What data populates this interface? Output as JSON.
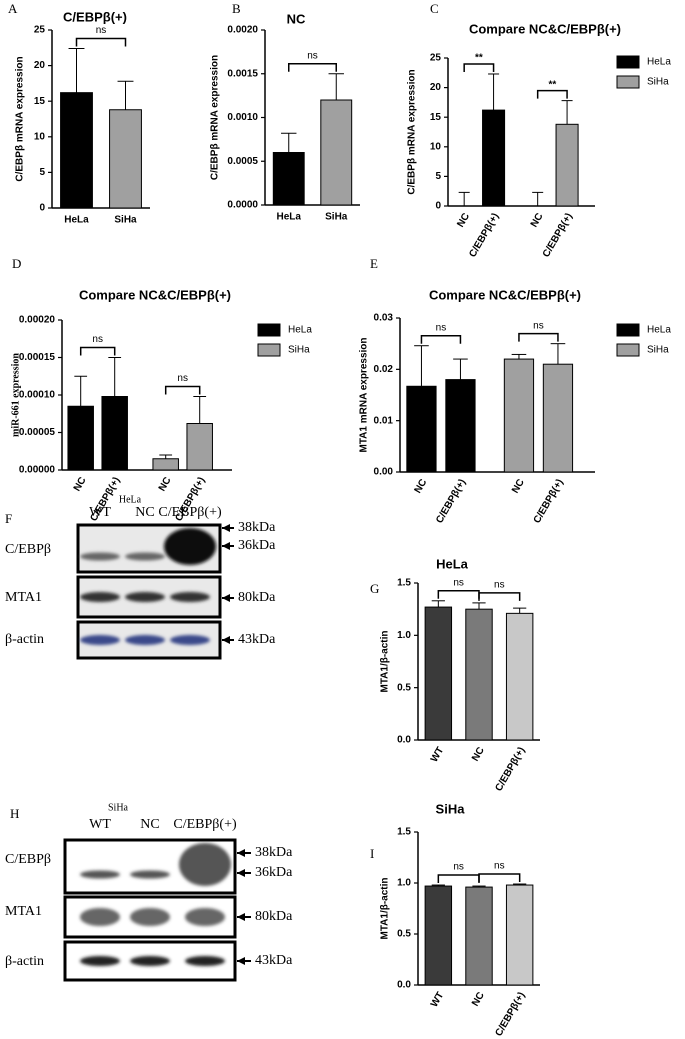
{
  "chart_data": [
    {
      "type": "bar",
      "panel": "A",
      "title": "C/EBPβ(+)",
      "y_label": "C/EBPβ mRNA expression",
      "categories": [
        "HeLa",
        "SiHa"
      ],
      "values": [
        16.2,
        13.8
      ],
      "errors": [
        6.2,
        4.0
      ],
      "colors": [
        "#000000",
        "#a0a0a0"
      ],
      "ylim": [
        0,
        25
      ],
      "yticks": [
        0,
        5,
        10,
        15,
        20,
        25
      ],
      "annotations": [
        "ns"
      ]
    },
    {
      "type": "bar",
      "panel": "B",
      "title": "NC",
      "y_label": "C/EBPβ mRNA expression",
      "categories": [
        "HeLa",
        "SiHa"
      ],
      "values": [
        0.0006,
        0.0012
      ],
      "errors": [
        0.00022,
        0.0003
      ],
      "colors": [
        "#000000",
        "#a0a0a0"
      ],
      "ylim": [
        0,
        0.002
      ],
      "yticks": [
        {
          "value": 0,
          "label": "0.0000"
        },
        {
          "value": 0.0005,
          "label": "0.0005"
        },
        {
          "value": 0.001,
          "label": "0.0010"
        },
        {
          "value": 0.0015,
          "label": "0.0015"
        },
        {
          "value": 0.002,
          "label": "0.0020"
        }
      ],
      "annotations": [
        "ns"
      ]
    },
    {
      "type": "grouped_bar",
      "panel": "C",
      "title": "Compare NC&C/EBPβ(+)",
      "y_label": "C/EBPβ mRNA expression",
      "categories": [
        "NC",
        "C/EBPβ(+)",
        "NC",
        "C/EBPβ(+)"
      ],
      "series": [
        {
          "name": "HeLa",
          "color": "#000000",
          "values": [
            0,
            16.2,
            null,
            null
          ],
          "errors": [
            2.3,
            6.1,
            null,
            null
          ]
        },
        {
          "name": "SiHa",
          "color": "#a0a0a0",
          "values": [
            null,
            null,
            0,
            13.8
          ],
          "errors": [
            null,
            null,
            2.3,
            4.0
          ]
        }
      ],
      "ylim": [
        0,
        25
      ],
      "yticks": [
        0,
        5,
        10,
        15,
        20,
        25
      ],
      "annotations": [
        "**",
        "**"
      ]
    },
    {
      "type": "grouped_bar",
      "panel": "D",
      "title": "Compare NC&C/EBPβ(+)",
      "y_label": "miR-661 expression",
      "categories": [
        "NC",
        "C/EBPβ(+)",
        "NC",
        "C/EBPβ(+)"
      ],
      "series": [
        {
          "name": "HeLa",
          "color": "#000000",
          "values": [
            8.5e-05,
            9.8e-05,
            null,
            null
          ],
          "errors": [
            4e-05,
            5.2e-05,
            null,
            null
          ]
        },
        {
          "name": "SiHa",
          "color": "#a0a0a0",
          "values": [
            null,
            null,
            1.5e-05,
            6.2e-05
          ],
          "errors": [
            null,
            null,
            5e-06,
            3.6e-05
          ]
        }
      ],
      "ylim": [
        0,
        0.0002
      ],
      "yticks": [
        {
          "value": 0,
          "label": "0.00000"
        },
        {
          "value": 5e-05,
          "label": "0.00005"
        },
        {
          "value": 0.0001,
          "label": "0.00010"
        },
        {
          "value": 0.00015,
          "label": "0.00015"
        },
        {
          "value": 0.0002,
          "label": "0.00020"
        }
      ],
      "annotations": [
        "ns",
        "ns"
      ]
    },
    {
      "type": "grouped_bar",
      "panel": "E",
      "title": "Compare NC&C/EBPβ(+)",
      "y_label": "MTA1 mRNA expression",
      "categories": [
        "NC",
        "C/EBPβ(+)",
        "NC",
        "C/EBPβ(+)"
      ],
      "series": [
        {
          "name": "HeLa",
          "color": "#000000",
          "values": [
            0.0167,
            0.018,
            null,
            null
          ],
          "errors": [
            0.0079,
            0.004,
            null,
            null
          ]
        },
        {
          "name": "SiHa",
          "color": "#a0a0a0",
          "values": [
            null,
            null,
            0.022,
            0.021
          ],
          "errors": [
            null,
            null,
            0.0009,
            0.004
          ]
        }
      ],
      "ylim": [
        0,
        0.03
      ],
      "yticks": [
        {
          "value": 0,
          "label": "0.00"
        },
        {
          "value": 0.01,
          "label": "0.01"
        },
        {
          "value": 0.02,
          "label": "0.02"
        },
        {
          "value": 0.03,
          "label": "0.03"
        }
      ],
      "annotations": [
        "ns",
        "ns"
      ]
    },
    {
      "type": "bar",
      "panel": "G",
      "title": "HeLa",
      "y_label": "MTA1/β-actin",
      "categories": [
        "WT",
        "NC",
        "C/EBPβ(+)"
      ],
      "values": [
        1.27,
        1.25,
        1.21
      ],
      "errors": [
        0.06,
        0.06,
        0.05
      ],
      "colors": [
        "#3a3a3a",
        "#7a7a7a",
        "#c8c8c8"
      ],
      "ylim": [
        0,
        1.5
      ],
      "yticks": [
        {
          "value": 0,
          "label": "0.0"
        },
        {
          "value": 0.5,
          "label": "0.5"
        },
        {
          "value": 1,
          "label": "1.0"
        },
        {
          "value": 1.5,
          "label": "1.5"
        }
      ],
      "annotations": [
        "ns",
        "ns"
      ]
    },
    {
      "type": "bar",
      "panel": "I",
      "title": "SiHa",
      "y_label": "MTA1/β-actin",
      "categories": [
        "WT",
        "NC",
        "C/EBPβ(+)"
      ],
      "values": [
        0.97,
        0.96,
        0.98
      ],
      "errors": [
        0.01,
        0.01,
        0.01
      ],
      "colors": [
        "#3a3a3a",
        "#7a7a7a",
        "#c8c8c8"
      ],
      "ylim": [
        0,
        1.5
      ],
      "yticks": [
        {
          "value": 0,
          "label": "0.0"
        },
        {
          "value": 0.5,
          "label": "0.5"
        },
        {
          "value": 1,
          "label": "1.0"
        },
        {
          "value": 1.5,
          "label": "1.5"
        }
      ],
      "annotations": [
        "ns",
        "ns"
      ]
    }
  ],
  "blots": [
    {
      "panel": "F",
      "cell_line": "HeLa",
      "lanes": [
        "WT",
        "NC",
        "C/EBPβ(+)"
      ],
      "rows": [
        "C/EBPβ",
        "MTA1",
        "β-actin"
      ],
      "markers": [
        "38kDa",
        "36kDa",
        "80kDa",
        "43kDa"
      ]
    },
    {
      "panel": "H",
      "cell_line": "SiHa",
      "lanes": [
        "WT",
        "NC",
        "C/EBPβ(+)"
      ],
      "rows": [
        "C/EBPβ",
        "MTA1",
        "β-actin"
      ],
      "markers": [
        "38kDa",
        "36kDa",
        "80kDa",
        "43kDa"
      ]
    }
  ]
}
